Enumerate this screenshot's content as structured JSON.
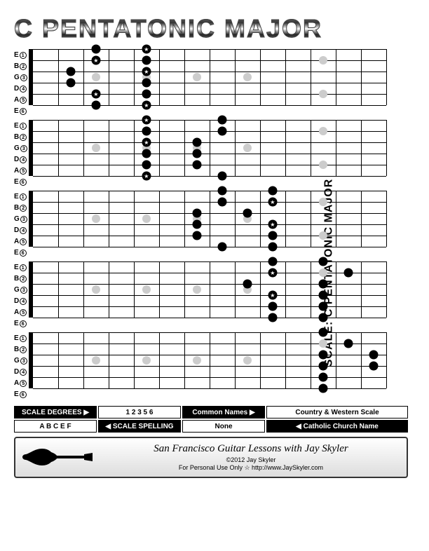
{
  "title": "C PENTATONIC MAJOR",
  "vertical_label": "SCALE:  C PENTATONIC MAJOR",
  "string_names": [
    "E",
    "B",
    "G",
    "D",
    "A",
    "E"
  ],
  "string_nums": [
    "①",
    "②",
    "③",
    "④",
    "⑤",
    "⑥"
  ],
  "fretboard": {
    "num_frets": 14,
    "num_strings": 6,
    "fret_markers": [
      3,
      5,
      7,
      9,
      12,
      12
    ],
    "marker_positions": [
      {
        "fret": 3,
        "y": 40
      },
      {
        "fret": 5,
        "y": 40
      },
      {
        "fret": 7,
        "y": 40
      },
      {
        "fret": 9,
        "y": 40
      },
      {
        "fret": 12,
        "y": 16
      },
      {
        "fret": 12,
        "y": 64
      }
    ],
    "colors": {
      "note": "#000000",
      "marker": "#cccccc",
      "line": "#000000"
    }
  },
  "positions": [
    {
      "notes": [
        {
          "s": 1,
          "f": 3,
          "r": 0
        },
        {
          "s": 1,
          "f": 5,
          "r": 1
        },
        {
          "s": 2,
          "f": 3,
          "r": 1
        },
        {
          "s": 2,
          "f": 5,
          "r": 0
        },
        {
          "s": 3,
          "f": 2,
          "r": 0
        },
        {
          "s": 3,
          "f": 5,
          "r": 1
        },
        {
          "s": 4,
          "f": 2,
          "r": 0
        },
        {
          "s": 4,
          "f": 5,
          "r": 0
        },
        {
          "s": 5,
          "f": 3,
          "r": 1
        },
        {
          "s": 5,
          "f": 5,
          "r": 0
        },
        {
          "s": 6,
          "f": 3,
          "r": 0
        },
        {
          "s": 6,
          "f": 5,
          "r": 1
        }
      ]
    },
    {
      "notes": [
        {
          "s": 1,
          "f": 5,
          "r": 1
        },
        {
          "s": 1,
          "f": 8,
          "r": 0
        },
        {
          "s": 2,
          "f": 5,
          "r": 0
        },
        {
          "s": 2,
          "f": 8,
          "r": 0
        },
        {
          "s": 3,
          "f": 5,
          "r": 1
        },
        {
          "s": 3,
          "f": 7,
          "r": 0
        },
        {
          "s": 4,
          "f": 5,
          "r": 0
        },
        {
          "s": 4,
          "f": 7,
          "r": 0
        },
        {
          "s": 5,
          "f": 5,
          "r": 0
        },
        {
          "s": 5,
          "f": 7,
          "r": 0
        },
        {
          "s": 6,
          "f": 5,
          "r": 1
        },
        {
          "s": 6,
          "f": 8,
          "r": 0
        }
      ]
    },
    {
      "notes": [
        {
          "s": 1,
          "f": 8,
          "r": 0
        },
        {
          "s": 1,
          "f": 10,
          "r": 0
        },
        {
          "s": 2,
          "f": 8,
          "r": 0
        },
        {
          "s": 2,
          "f": 10,
          "r": 1
        },
        {
          "s": 3,
          "f": 7,
          "r": 0
        },
        {
          "s": 3,
          "f": 9,
          "r": 0
        },
        {
          "s": 4,
          "f": 7,
          "r": 0
        },
        {
          "s": 4,
          "f": 10,
          "r": 1
        },
        {
          "s": 5,
          "f": 7,
          "r": 0
        },
        {
          "s": 5,
          "f": 10,
          "r": 0
        },
        {
          "s": 6,
          "f": 8,
          "r": 0
        },
        {
          "s": 6,
          "f": 10,
          "r": 0
        }
      ]
    },
    {
      "notes": [
        {
          "s": 1,
          "f": 10,
          "r": 0
        },
        {
          "s": 1,
          "f": 12,
          "r": 0
        },
        {
          "s": 2,
          "f": 10,
          "r": 1
        },
        {
          "s": 2,
          "f": 13,
          "r": 0
        },
        {
          "s": 3,
          "f": 9,
          "r": 0
        },
        {
          "s": 3,
          "f": 12,
          "r": 0
        },
        {
          "s": 4,
          "f": 10,
          "r": 1
        },
        {
          "s": 4,
          "f": 12,
          "r": 0
        },
        {
          "s": 5,
          "f": 10,
          "r": 0
        },
        {
          "s": 5,
          "f": 12,
          "r": 0
        },
        {
          "s": 6,
          "f": 10,
          "r": 0
        },
        {
          "s": 6,
          "f": 12,
          "r": 0
        }
      ]
    },
    {
      "notes": [
        {
          "s": 1,
          "f": 12,
          "r": 0
        },
        {
          "s": 1,
          "f": 15,
          "r": 0
        },
        {
          "s": 2,
          "f": 13,
          "r": 0
        },
        {
          "s": 2,
          "f": 15,
          "r": 0
        },
        {
          "s": 3,
          "f": 12,
          "r": 0
        },
        {
          "s": 3,
          "f": 14,
          "r": 0
        },
        {
          "s": 4,
          "f": 12,
          "r": 0
        },
        {
          "s": 4,
          "f": 14,
          "r": 0
        },
        {
          "s": 5,
          "f": 12,
          "r": 0
        },
        {
          "s": 5,
          "f": 15,
          "r": 1
        },
        {
          "s": 6,
          "f": 12,
          "r": 0
        },
        {
          "s": 6,
          "f": 15,
          "r": 0
        }
      ]
    }
  ],
  "info": {
    "scale_degrees_label": "SCALE DEGREES ▶",
    "scale_degrees_value": "1 2 3 5 6",
    "common_names_label": "Common Names ▶",
    "common_names_value": "Country & Western Scale",
    "scale_spelling_value": "A B C   E F",
    "scale_spelling_label": "◀ SCALE SPELLING",
    "church_value": "None",
    "church_label": "◀ Catholic Church Name"
  },
  "footer": {
    "main": "San Francisco Guitar Lessons with Jay Skyler",
    "copyright": "©2012 Jay Skyler",
    "personal": "For Personal Use Only  ☆  http://www.JaySkyler.com"
  }
}
